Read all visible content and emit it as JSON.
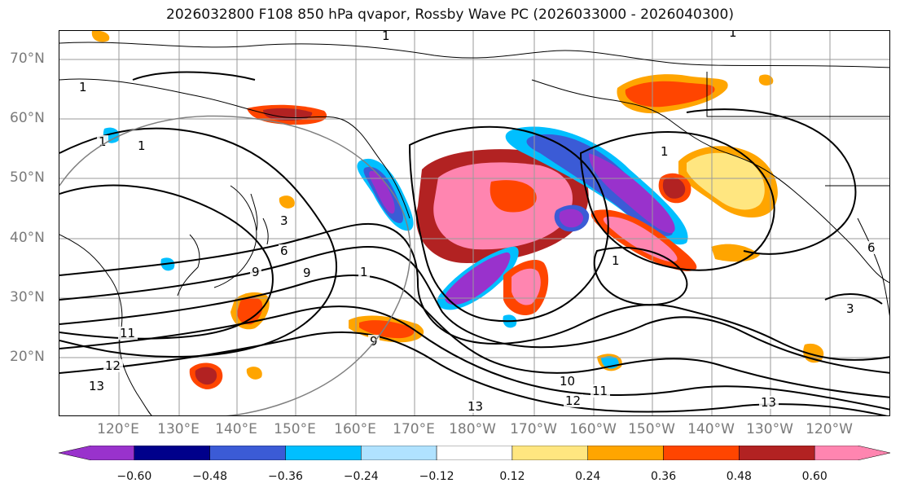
{
  "title": "2026032800 F108 850 hPa qvapor, Rossby Wave PC (2026033000 - 2026040300)",
  "lat_labels": [
    "70°N",
    "60°N",
    "50°N",
    "40°N",
    "30°N",
    "20°N"
  ],
  "lon_labels": [
    "120°E",
    "130°E",
    "140°E",
    "150°E",
    "160°E",
    "170°E",
    "180°W",
    "170°W",
    "160°W",
    "150°W",
    "140°W",
    "130°W",
    "120°W"
  ],
  "colorbar": {
    "colors": [
      "#9932cc",
      "#00008b",
      "#3b5bd6",
      "#00bfff",
      "#b0e2ff",
      "#ffffff",
      "#ffe680",
      "#ffa500",
      "#ff4500",
      "#b22222",
      "#ff85b0"
    ],
    "tick_labels": [
      "−0.60",
      "−0.48",
      "−0.36",
      "−0.24",
      "−0.12",
      "0.12",
      "0.24",
      "0.36",
      "0.48",
      "0.60"
    ]
  },
  "contour_labels": [
    "1",
    "1",
    "1",
    "1",
    "1",
    "1",
    "1",
    "1",
    "3",
    "3",
    "6",
    "6",
    "9",
    "9",
    "9",
    "10",
    "11",
    "11",
    "12",
    "12",
    "13",
    "13",
    "13"
  ]
}
